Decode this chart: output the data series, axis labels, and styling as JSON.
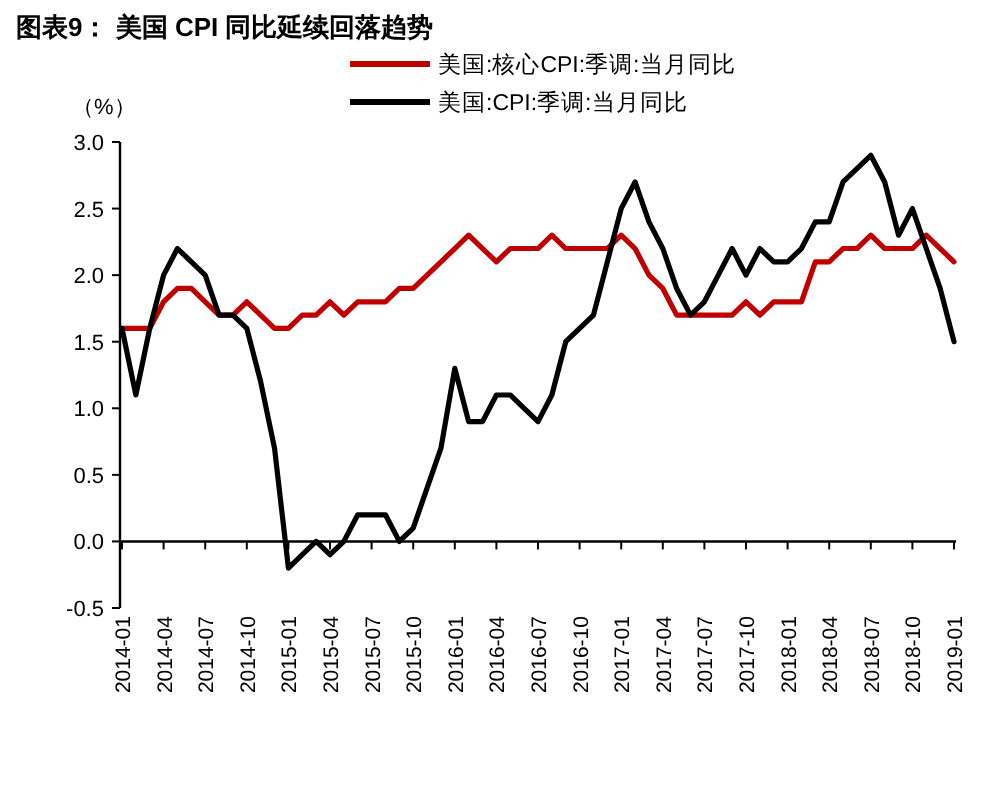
{
  "chart_data": {
    "type": "line",
    "title": "图表9： 美国 CPI 同比延续回落趋势",
    "ylabel": "（%）",
    "categories": [
      "2014-01",
      null,
      null,
      "2014-04",
      null,
      null,
      "2014-07",
      null,
      null,
      "2014-10",
      null,
      null,
      "2015-01",
      null,
      null,
      "2015-04",
      null,
      null,
      "2015-07",
      null,
      null,
      "2015-10",
      null,
      null,
      "2016-01",
      null,
      null,
      "2016-04",
      null,
      null,
      "2016-07",
      null,
      null,
      "2016-10",
      null,
      null,
      "2017-01",
      null,
      null,
      "2017-04",
      null,
      null,
      "2017-07",
      null,
      null,
      "2017-10",
      null,
      null,
      "2018-01",
      null,
      null,
      "2018-04",
      null,
      null,
      "2018-07",
      null,
      null,
      "2018-10",
      null,
      null,
      "2019-01"
    ],
    "series": [
      {
        "name": "美国:核心CPI:季调:当月同比",
        "color": "#c00000",
        "values": [
          1.6,
          1.6,
          1.6,
          1.8,
          1.9,
          1.9,
          1.8,
          1.7,
          1.7,
          1.8,
          1.7,
          1.6,
          1.6,
          1.7,
          1.7,
          1.8,
          1.7,
          1.8,
          1.8,
          1.8,
          1.9,
          1.9,
          2.0,
          2.1,
          2.2,
          2.3,
          2.2,
          2.1,
          2.2,
          2.2,
          2.2,
          2.3,
          2.2,
          2.2,
          2.2,
          2.2,
          2.3,
          2.2,
          2.0,
          1.9,
          1.7,
          1.7,
          1.7,
          1.7,
          1.7,
          1.8,
          1.7,
          1.8,
          1.8,
          1.8,
          2.1,
          2.1,
          2.2,
          2.2,
          2.3,
          2.2,
          2.2,
          2.2,
          2.3,
          2.2,
          2.1
        ]
      },
      {
        "name": "美国:CPI:季调:当月同比",
        "color": "#000000",
        "values": [
          1.6,
          1.1,
          1.6,
          2.0,
          2.2,
          2.1,
          2.0,
          1.7,
          1.7,
          1.6,
          1.2,
          0.7,
          -0.2,
          -0.1,
          0.0,
          -0.1,
          0.0,
          0.2,
          0.2,
          0.2,
          0.0,
          0.1,
          0.4,
          0.7,
          1.3,
          0.9,
          0.9,
          1.1,
          1.1,
          1.0,
          0.9,
          1.1,
          1.5,
          1.6,
          1.7,
          2.1,
          2.5,
          2.7,
          2.4,
          2.2,
          1.9,
          1.7,
          1.8,
          2.0,
          2.2,
          2.0,
          2.2,
          2.1,
          2.1,
          2.2,
          2.4,
          2.4,
          2.7,
          2.8,
          2.9,
          2.7,
          2.3,
          2.5,
          2.2,
          1.9,
          1.5
        ]
      }
    ],
    "ylim": [
      -0.5,
      3.0
    ],
    "yticks": [
      {
        "value": -0.5,
        "label": "-0.5"
      },
      {
        "value": 0,
        "label": "0.0"
      },
      {
        "value": 0.5,
        "label": "0.5"
      },
      {
        "value": 1,
        "label": "1.0"
      },
      {
        "value": 1.5,
        "label": "1.5"
      },
      {
        "value": 2,
        "label": "2.0"
      },
      {
        "value": 2.5,
        "label": "2.5"
      },
      {
        "value": 3,
        "label": "3.0"
      }
    ],
    "legend": "top right",
    "marker": "none",
    "line_style": "solid"
  }
}
